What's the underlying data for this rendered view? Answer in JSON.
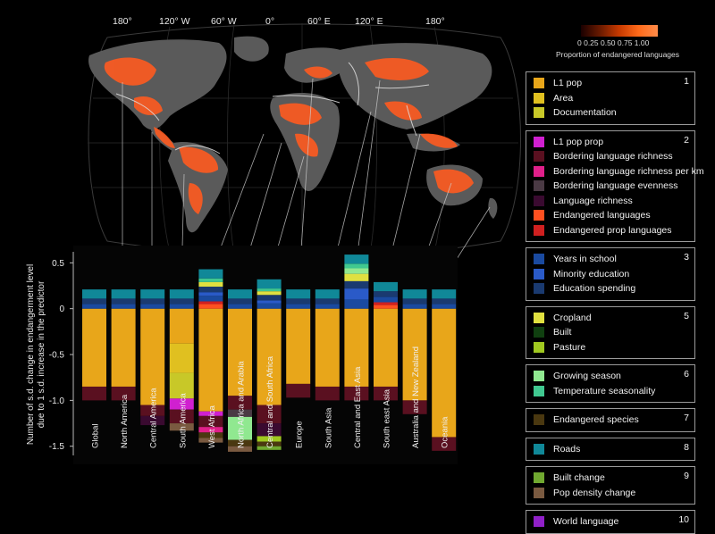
{
  "map": {
    "longitude_labels": [
      "180°",
      "120° W",
      "60° W",
      "0°",
      "60° E",
      "120° E",
      "180°"
    ],
    "colorbar": {
      "ticks": "0  0.25  0.50  0.75  1.00",
      "title": "Proportion of endangered languages"
    }
  },
  "chart_data": {
    "type": "bar",
    "subtype": "stacked-diverging",
    "ylabel": "Number of s.d. change in endangerment level due to 1 s.d. increase in the predictor",
    "ylim": [
      -1.6,
      0.62
    ],
    "yticks": [
      0.5,
      0,
      -0.5,
      -1.0,
      -1.5
    ],
    "ytick_labels": [
      "0.5",
      "0",
      "-0.5",
      "-1.0",
      "-1.5"
    ],
    "categories": [
      "Global",
      "North America",
      "Central America",
      "South America",
      "West Africa",
      "North Africa and Arabia",
      "Central and South Africa",
      "Europe",
      "South Asia",
      "Central and East Asia",
      "South east Asia",
      "Australia and New Zealand",
      "Oceania"
    ],
    "series": [
      {
        "name": "L1 pop",
        "color": "#e8a61a",
        "values": [
          -0.85,
          -0.85,
          -1.05,
          -0.38,
          -1.12,
          -0.95,
          -1.05,
          -0.82,
          -0.85,
          -0.85,
          -0.85,
          -1.0,
          -1.4
        ]
      },
      {
        "name": "Area",
        "color": "#e0c020",
        "values": [
          0,
          0,
          0,
          -0.32,
          0,
          0,
          0,
          0,
          0,
          0,
          0,
          0,
          0
        ]
      },
      {
        "name": "Documentation",
        "color": "#c8c828",
        "values": [
          0,
          0,
          0,
          -0.28,
          0,
          0,
          0,
          0,
          0,
          0,
          0,
          0,
          0
        ]
      },
      {
        "name": "L1 pop prop",
        "color": "#d020d0",
        "values": [
          0,
          0,
          0,
          -0.12,
          -0.05,
          0,
          0,
          0,
          0,
          0,
          0,
          0,
          0
        ]
      },
      {
        "name": "Bordering language richness",
        "color": "#5a1020",
        "values": [
          -0.15,
          -0.15,
          -0.12,
          -0.15,
          -0.12,
          -0.15,
          -0.2,
          -0.15,
          -0.15,
          -0.15,
          -0.15,
          -0.15,
          -0.15
        ]
      },
      {
        "name": "Bordering language richness per km",
        "color": "#e0208a",
        "values": [
          0,
          0,
          0,
          0,
          -0.06,
          0,
          0,
          0,
          0,
          0,
          0,
          0,
          0
        ]
      },
      {
        "name": "Bordering language evenness",
        "color": "#4a3a44",
        "values": [
          0,
          0,
          0,
          0,
          0,
          -0.08,
          0,
          0,
          0,
          0,
          0,
          0,
          0
        ]
      },
      {
        "name": "Language richness",
        "color": "#3a0a30",
        "values": [
          0,
          0,
          -0.1,
          0,
          0,
          0,
          -0.14,
          0,
          0,
          0,
          0,
          0,
          0
        ]
      },
      {
        "name": "Endangered languages",
        "color": "#ff5020",
        "values": [
          0,
          0,
          0,
          0,
          0.05,
          0,
          0,
          0,
          0,
          0,
          0.04,
          0,
          0
        ]
      },
      {
        "name": "Endangered prop languages",
        "color": "#d02020",
        "values": [
          0,
          0,
          0,
          0,
          0.03,
          0,
          0,
          0,
          0,
          0,
          0.03,
          0,
          0
        ]
      },
      {
        "name": "Years in school",
        "color": "#1a4aa0",
        "values": [
          0.05,
          0.05,
          0.05,
          0.05,
          0.06,
          0.05,
          0.06,
          0.05,
          0.05,
          0.1,
          0.06,
          0.05,
          0.05
        ]
      },
      {
        "name": "Minority education",
        "color": "#2a5ac8",
        "values": [
          0,
          0,
          0,
          0,
          0.04,
          0,
          0.03,
          0,
          0,
          0.12,
          0,
          0,
          0
        ]
      },
      {
        "name": "Education spending",
        "color": "#1a3a70",
        "values": [
          0.06,
          0.06,
          0.06,
          0.06,
          0.06,
          0.06,
          0.06,
          0.06,
          0.06,
          0.08,
          0.06,
          0.06,
          0.06
        ]
      },
      {
        "name": "Cropland",
        "color": "#e0e040",
        "values": [
          0,
          0,
          0,
          0,
          0.05,
          0,
          0.04,
          0,
          0,
          0.08,
          0,
          0,
          0
        ]
      },
      {
        "name": "Built",
        "color": "#104010",
        "values": [
          0,
          0,
          0,
          0,
          0,
          0,
          0,
          0,
          0,
          0,
          0,
          0,
          0
        ]
      },
      {
        "name": "Pasture",
        "color": "#a0c820",
        "values": [
          0,
          0,
          0,
          0,
          0,
          0,
          -0.06,
          0,
          0,
          0,
          0,
          0,
          0
        ]
      },
      {
        "name": "Growing season",
        "color": "#90e890",
        "values": [
          0,
          0,
          0,
          0,
          0,
          -0.25,
          0,
          0,
          0,
          0.06,
          0,
          0,
          0
        ]
      },
      {
        "name": "Temperature seasonality",
        "color": "#40c890",
        "values": [
          0,
          0,
          0,
          0,
          0.04,
          0,
          0.03,
          0,
          0,
          0.05,
          0,
          0,
          0
        ]
      },
      {
        "name": "Endangered species",
        "color": "#4a3810",
        "values": [
          0,
          0,
          0,
          0,
          -0.06,
          -0.07,
          -0.05,
          0,
          0,
          0,
          0,
          0,
          0
        ]
      },
      {
        "name": "Roads",
        "color": "#108898",
        "values": [
          0.1,
          0.1,
          0.1,
          0.1,
          0.1,
          0.1,
          0.1,
          0.1,
          0.1,
          0.1,
          0.1,
          0.1,
          0.1
        ]
      },
      {
        "name": "Built change",
        "color": "#70a830",
        "values": [
          0,
          0,
          0,
          0,
          0,
          0,
          -0.04,
          0,
          0,
          0,
          0,
          0,
          0
        ]
      },
      {
        "name": "Pop density change",
        "color": "#7a5a40",
        "values": [
          0,
          0,
          0,
          -0.08,
          -0.05,
          -0.06,
          0,
          0,
          0,
          0,
          0,
          0,
          0
        ]
      },
      {
        "name": "World language",
        "color": "#9020c8",
        "values": [
          0,
          0,
          0,
          0,
          0,
          0,
          0,
          0,
          0,
          0,
          0,
          0,
          0
        ]
      }
    ]
  },
  "legend": [
    {
      "number": "1",
      "items": [
        {
          "label": "L1 pop",
          "color": "#e8a61a"
        },
        {
          "label": "Area",
          "color": "#e0c020"
        },
        {
          "label": "Documentation",
          "color": "#c8c828"
        }
      ]
    },
    {
      "number": "2",
      "items": [
        {
          "label": "L1 pop prop",
          "color": "#d020d0"
        },
        {
          "label": "Bordering language richness",
          "color": "#5a1020"
        },
        {
          "label": "Bordering language richness per km",
          "color": "#e0208a"
        },
        {
          "label": "Bordering language evenness",
          "color": "#4a3a44"
        },
        {
          "label": "Language richness",
          "color": "#3a0a30"
        },
        {
          "label": "Endangered languages",
          "color": "#ff5020"
        },
        {
          "label": "Endangered prop languages",
          "color": "#d02020"
        }
      ]
    },
    {
      "number": "3",
      "items": [
        {
          "label": "Years in school",
          "color": "#1a4aa0"
        },
        {
          "label": "Minority education",
          "color": "#2a5ac8"
        },
        {
          "label": "Education spending",
          "color": "#1a3a70"
        }
      ]
    },
    {
      "number": "5",
      "items": [
        {
          "label": "Cropland",
          "color": "#e0e040"
        },
        {
          "label": "Built",
          "color": "#104010"
        },
        {
          "label": "Pasture",
          "color": "#a0c820"
        }
      ]
    },
    {
      "number": "6",
      "items": [
        {
          "label": "Growing season",
          "color": "#90e890"
        },
        {
          "label": "Temperature seasonality",
          "color": "#40c890"
        }
      ]
    },
    {
      "number": "7",
      "items": [
        {
          "label": "Endangered species",
          "color": "#4a3810"
        }
      ]
    },
    {
      "number": "8",
      "items": [
        {
          "label": "Roads",
          "color": "#108898"
        }
      ]
    },
    {
      "number": "9",
      "items": [
        {
          "label": "Built change",
          "color": "#70a830"
        },
        {
          "label": "Pop density change",
          "color": "#7a5a40"
        }
      ]
    },
    {
      "number": "10",
      "items": [
        {
          "label": "World language",
          "color": "#9020c8"
        }
      ]
    }
  ]
}
